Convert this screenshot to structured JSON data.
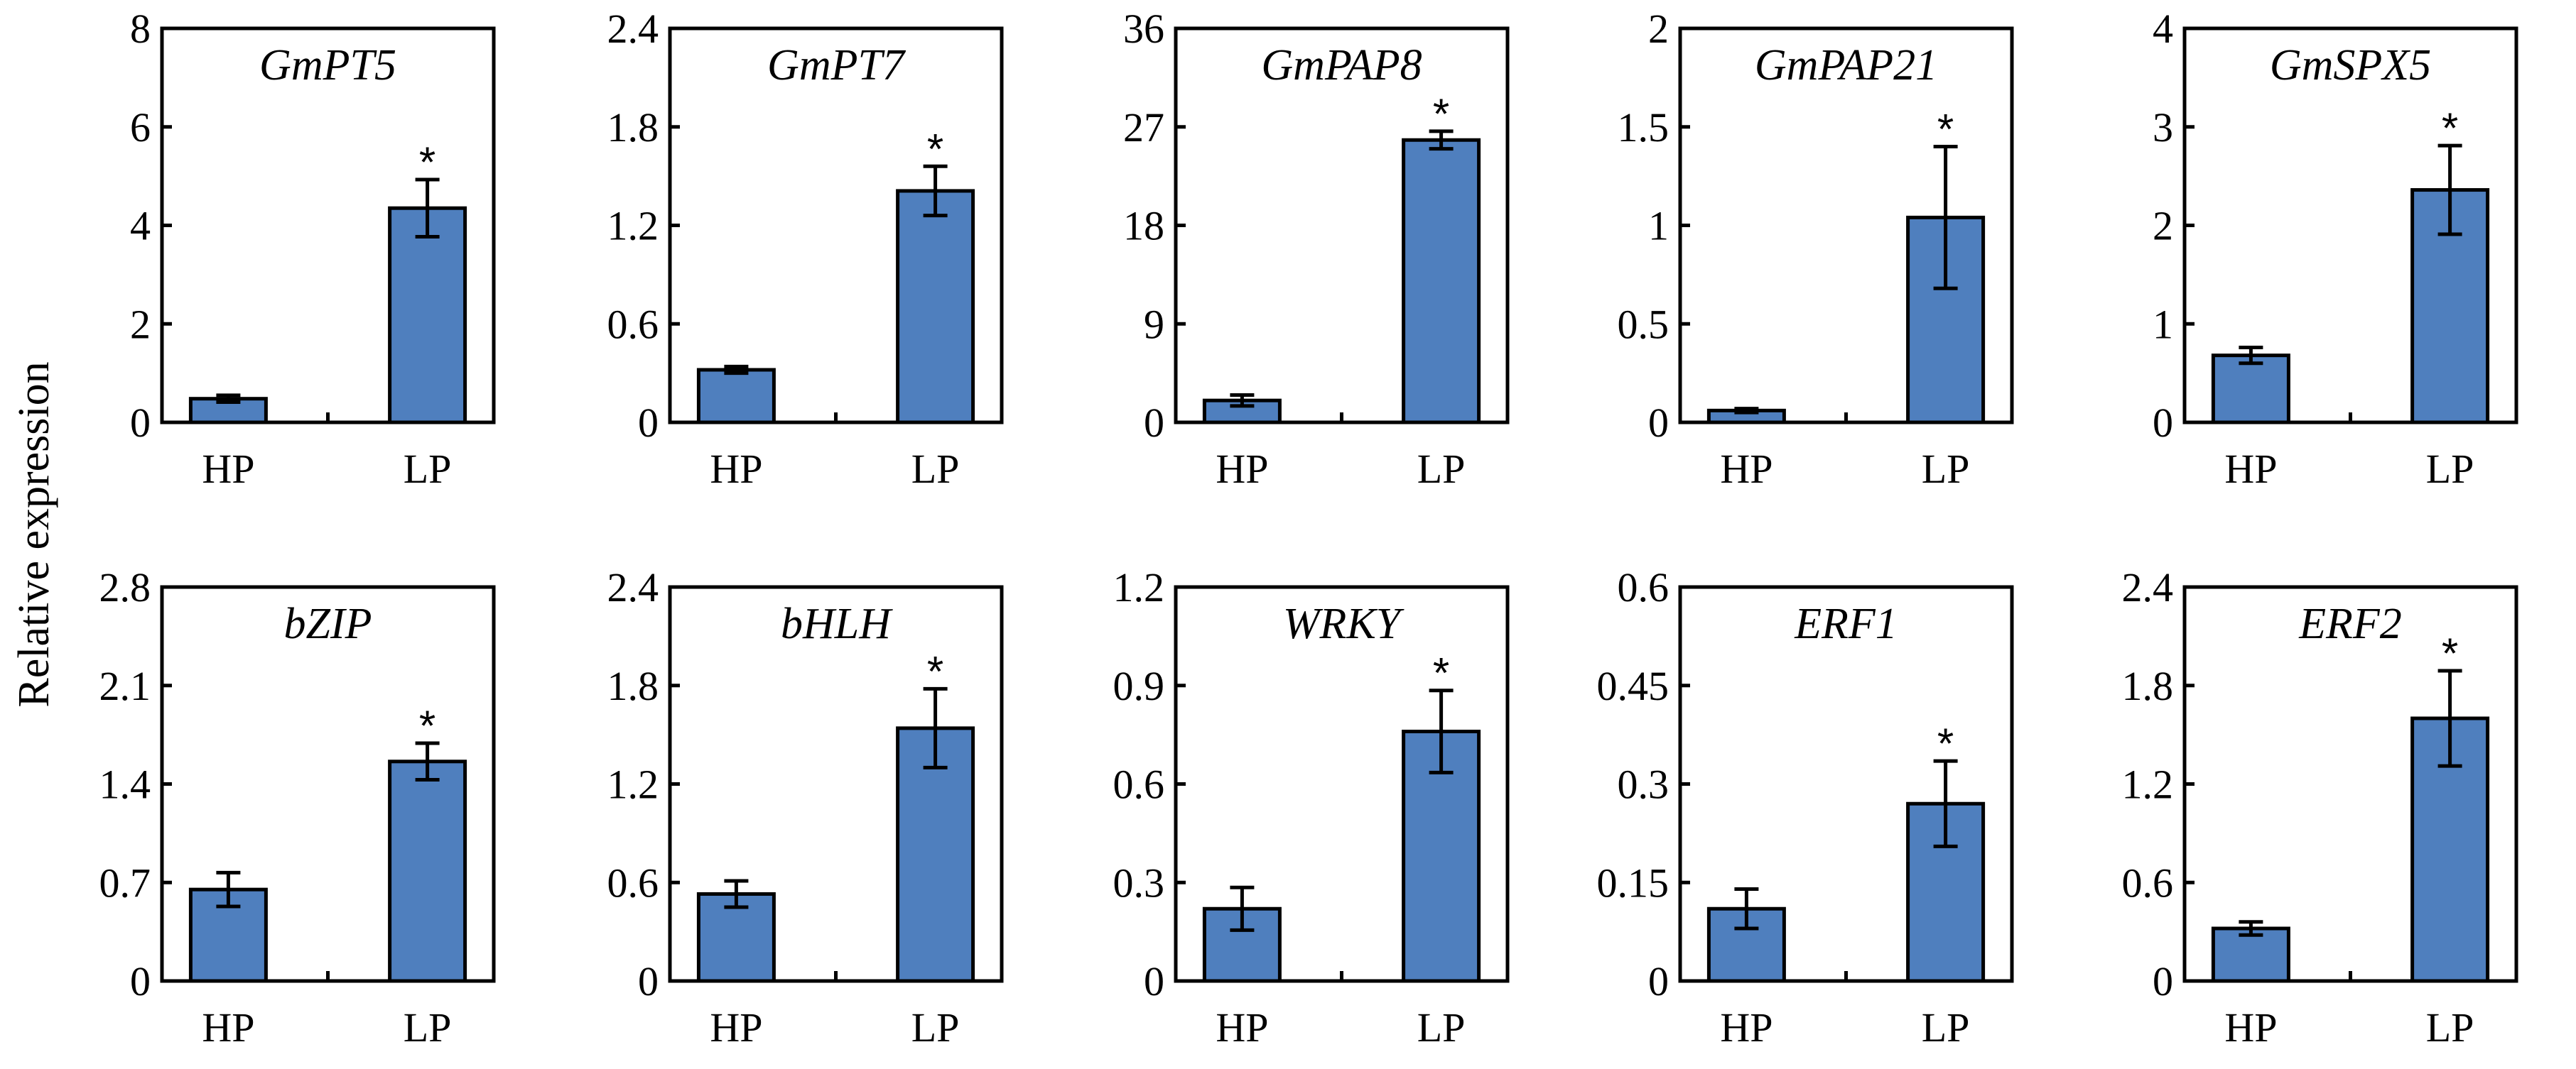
{
  "y_axis_label": "Relative expression",
  "bar_color": "#4F7FBE",
  "chart_data": [
    {
      "type": "bar",
      "title": "GmPT5",
      "categories": [
        "HP",
        "LP"
      ],
      "values": [
        0.48,
        4.35
      ],
      "errors": [
        0.07,
        0.58
      ],
      "significant": [
        "",
        "*"
      ],
      "ylim": [
        0,
        8
      ],
      "yticks": [
        "0",
        "2",
        "4",
        "6",
        "8"
      ],
      "ytick_values": [
        0,
        2,
        4,
        6,
        8
      ]
    },
    {
      "type": "bar",
      "title": "GmPT7",
      "categories": [
        "HP",
        "LP"
      ],
      "values": [
        0.32,
        1.41
      ],
      "errors": [
        0.02,
        0.15
      ],
      "significant": [
        "",
        "*"
      ],
      "ylim": [
        0,
        2.4
      ],
      "yticks": [
        "0",
        "0.6",
        "1.2",
        "1.8",
        "2.4"
      ],
      "ytick_values": [
        0,
        0.6,
        1.2,
        1.8,
        2.4
      ]
    },
    {
      "type": "bar",
      "title": "GmPAP8",
      "categories": [
        "HP",
        "LP"
      ],
      "values": [
        2.0,
        25.8
      ],
      "errors": [
        0.5,
        0.8
      ],
      "significant": [
        "",
        "*"
      ],
      "ylim": [
        0,
        36
      ],
      "yticks": [
        "0",
        "9",
        "18",
        "27",
        "36"
      ],
      "ytick_values": [
        0,
        9,
        18,
        27,
        36
      ]
    },
    {
      "type": "bar",
      "title": "GmPAP21",
      "categories": [
        "HP",
        "LP"
      ],
      "values": [
        0.06,
        1.04
      ],
      "errors": [
        0.01,
        0.36
      ],
      "significant": [
        "",
        "*"
      ],
      "ylim": [
        0,
        2
      ],
      "yticks": [
        "0",
        "0.5",
        "1",
        "1.5",
        "2"
      ],
      "ytick_values": [
        0,
        0.5,
        1,
        1.5,
        2
      ]
    },
    {
      "type": "bar",
      "title": "GmSPX5",
      "categories": [
        "HP",
        "LP"
      ],
      "values": [
        0.68,
        2.36
      ],
      "errors": [
        0.08,
        0.45
      ],
      "significant": [
        "",
        "*"
      ],
      "ylim": [
        0,
        4
      ],
      "yticks": [
        "0",
        "1",
        "2",
        "3",
        "4"
      ],
      "ytick_values": [
        0,
        1,
        2,
        3,
        4
      ]
    },
    {
      "type": "bar",
      "title": "bZIP",
      "categories": [
        "HP",
        "LP"
      ],
      "values": [
        0.65,
        1.56
      ],
      "errors": [
        0.12,
        0.13
      ],
      "significant": [
        "",
        "*"
      ],
      "ylim": [
        0,
        2.8
      ],
      "yticks": [
        "0",
        "0.7",
        "1.4",
        "2.1",
        "2.8"
      ],
      "ytick_values": [
        0,
        0.7,
        1.4,
        2.1,
        2.8
      ]
    },
    {
      "type": "bar",
      "title": "bHLH",
      "categories": [
        "HP",
        "LP"
      ],
      "values": [
        0.53,
        1.54
      ],
      "errors": [
        0.08,
        0.24
      ],
      "significant": [
        "",
        "*"
      ],
      "ylim": [
        0,
        2.4
      ],
      "yticks": [
        "0",
        "0.6",
        "1.2",
        "1.8",
        "2.4"
      ],
      "ytick_values": [
        0,
        0.6,
        1.2,
        1.8,
        2.4
      ]
    },
    {
      "type": "bar",
      "title": "WRKY",
      "categories": [
        "HP",
        "LP"
      ],
      "values": [
        0.22,
        0.76
      ],
      "errors": [
        0.065,
        0.125
      ],
      "significant": [
        "",
        "*"
      ],
      "ylim": [
        0,
        1.2
      ],
      "yticks": [
        "0",
        "0.3",
        "0.6",
        "0.9",
        "1.2"
      ],
      "ytick_values": [
        0,
        0.3,
        0.6,
        0.9,
        1.2
      ]
    },
    {
      "type": "bar",
      "title": "ERF1",
      "categories": [
        "HP",
        "LP"
      ],
      "values": [
        0.11,
        0.27
      ],
      "errors": [
        0.03,
        0.065
      ],
      "significant": [
        "",
        "*"
      ],
      "ylim": [
        0,
        0.6
      ],
      "yticks": [
        "0",
        "0.15",
        "0.3",
        "0.45",
        "0.6"
      ],
      "ytick_values": [
        0,
        0.15,
        0.3,
        0.45,
        0.6
      ]
    },
    {
      "type": "bar",
      "title": "ERF2",
      "categories": [
        "HP",
        "LP"
      ],
      "values": [
        0.32,
        1.6
      ],
      "errors": [
        0.04,
        0.29
      ],
      "significant": [
        "",
        "*"
      ],
      "ylim": [
        0,
        2.4
      ],
      "yticks": [
        "0",
        "0.6",
        "1.2",
        "1.8",
        "2.4"
      ],
      "ytick_values": [
        0,
        0.6,
        1.2,
        1.8,
        2.4
      ]
    }
  ]
}
